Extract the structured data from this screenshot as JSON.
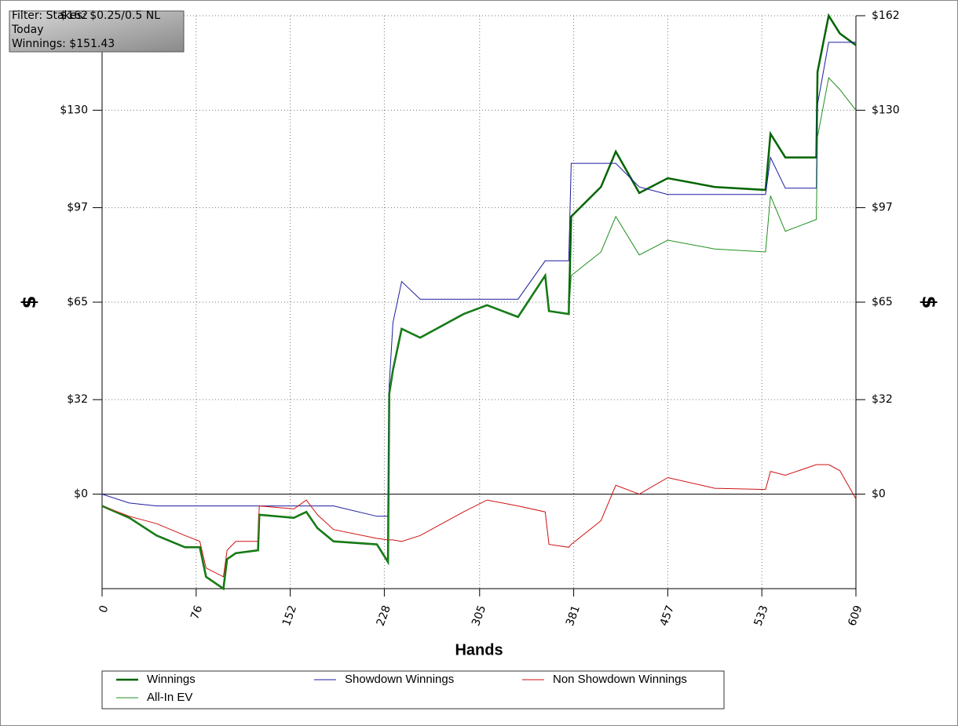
{
  "chart_data": {
    "type": "line",
    "annotations": [
      "Filter: Stakes: $0.25/0.5 NL",
      "Today",
      "Winnings: $151.43"
    ],
    "xlabel": "Hands",
    "ylabel": "$",
    "y2label": "$",
    "x": [
      0,
      22,
      44,
      67,
      79,
      84,
      98,
      101,
      108,
      126,
      127,
      155,
      165,
      174,
      187,
      222,
      231,
      232,
      235,
      242,
      257,
      292,
      311,
      336,
      358,
      361,
      377,
      379,
      403,
      415,
      434,
      457,
      495,
      536,
      540,
      552,
      577,
      578,
      587,
      596,
      609
    ],
    "series": [
      {
        "name": "Winnings",
        "color": "#006400",
        "values": [
          -4,
          -8,
          -14,
          -18,
          -18,
          -28,
          -32,
          -22,
          -20,
          -19,
          -7,
          -8,
          -6,
          -11.5,
          -16,
          -17,
          -23,
          34,
          42,
          56,
          53,
          61,
          64,
          60,
          74,
          62,
          61,
          94,
          104,
          116,
          102,
          107,
          104,
          103,
          122,
          114,
          114,
          143,
          162,
          156,
          152
        ]
      },
      {
        "name": "Showdown Winnings",
        "color": "#1c1ca0",
        "values": [
          0,
          -3,
          -4,
          -4,
          -4,
          -4,
          -4,
          -4,
          -4,
          -4,
          -4,
          -4,
          -4,
          -4,
          -4,
          -7.5,
          -7.5,
          37,
          58,
          72,
          66,
          66,
          66,
          66,
          79,
          79,
          79,
          112,
          112,
          112,
          104,
          101.5,
          101.5,
          101.5,
          114,
          103.6,
          103.6,
          132,
          153,
          153,
          153
        ]
      },
      {
        "name": "Non Showdown Winnings",
        "color": "#d01010",
        "values": [
          -4,
          -7.5,
          -10,
          -14,
          -16,
          -25,
          -28,
          -19,
          -16,
          -16,
          -4,
          -5,
          -2,
          -7,
          -12,
          -15,
          -15.5,
          -15.5,
          -15.5,
          -16,
          -14,
          -6,
          -2,
          -4,
          -6,
          -17,
          -18,
          -17,
          -9,
          3,
          0,
          5.6,
          2,
          1.6,
          7.7,
          6.4,
          10,
          10,
          10,
          8,
          -1.6
        ]
      },
      {
        "name": "All-In EV",
        "color": "#1f8f1f",
        "values": [
          -4,
          -8,
          -14,
          -18,
          -18,
          -28,
          -32,
          -22,
          -20,
          -19,
          -7,
          -8,
          -6,
          -11.5,
          -16,
          -17,
          -23,
          34,
          42,
          56,
          53,
          61,
          64,
          60,
          74,
          62,
          61,
          74,
          82,
          94,
          81,
          86,
          83,
          82,
          101,
          89,
          93,
          121,
          141,
          137,
          130
        ]
      }
    ],
    "xlim": [
      0,
      609
    ],
    "xticks": [
      0,
      76,
      152,
      228,
      305,
      381,
      457,
      533,
      609
    ],
    "ylim": [
      -32,
      162
    ],
    "yticks": [
      {
        "value": 0,
        "label": "$0"
      },
      {
        "value": 32,
        "label": "$32"
      },
      {
        "value": 65,
        "label": "$65"
      },
      {
        "value": 97,
        "label": "$97"
      },
      {
        "value": 130,
        "label": "$130"
      },
      {
        "value": 162,
        "label": "$162"
      }
    ],
    "grid": true,
    "legend": "bottom"
  }
}
